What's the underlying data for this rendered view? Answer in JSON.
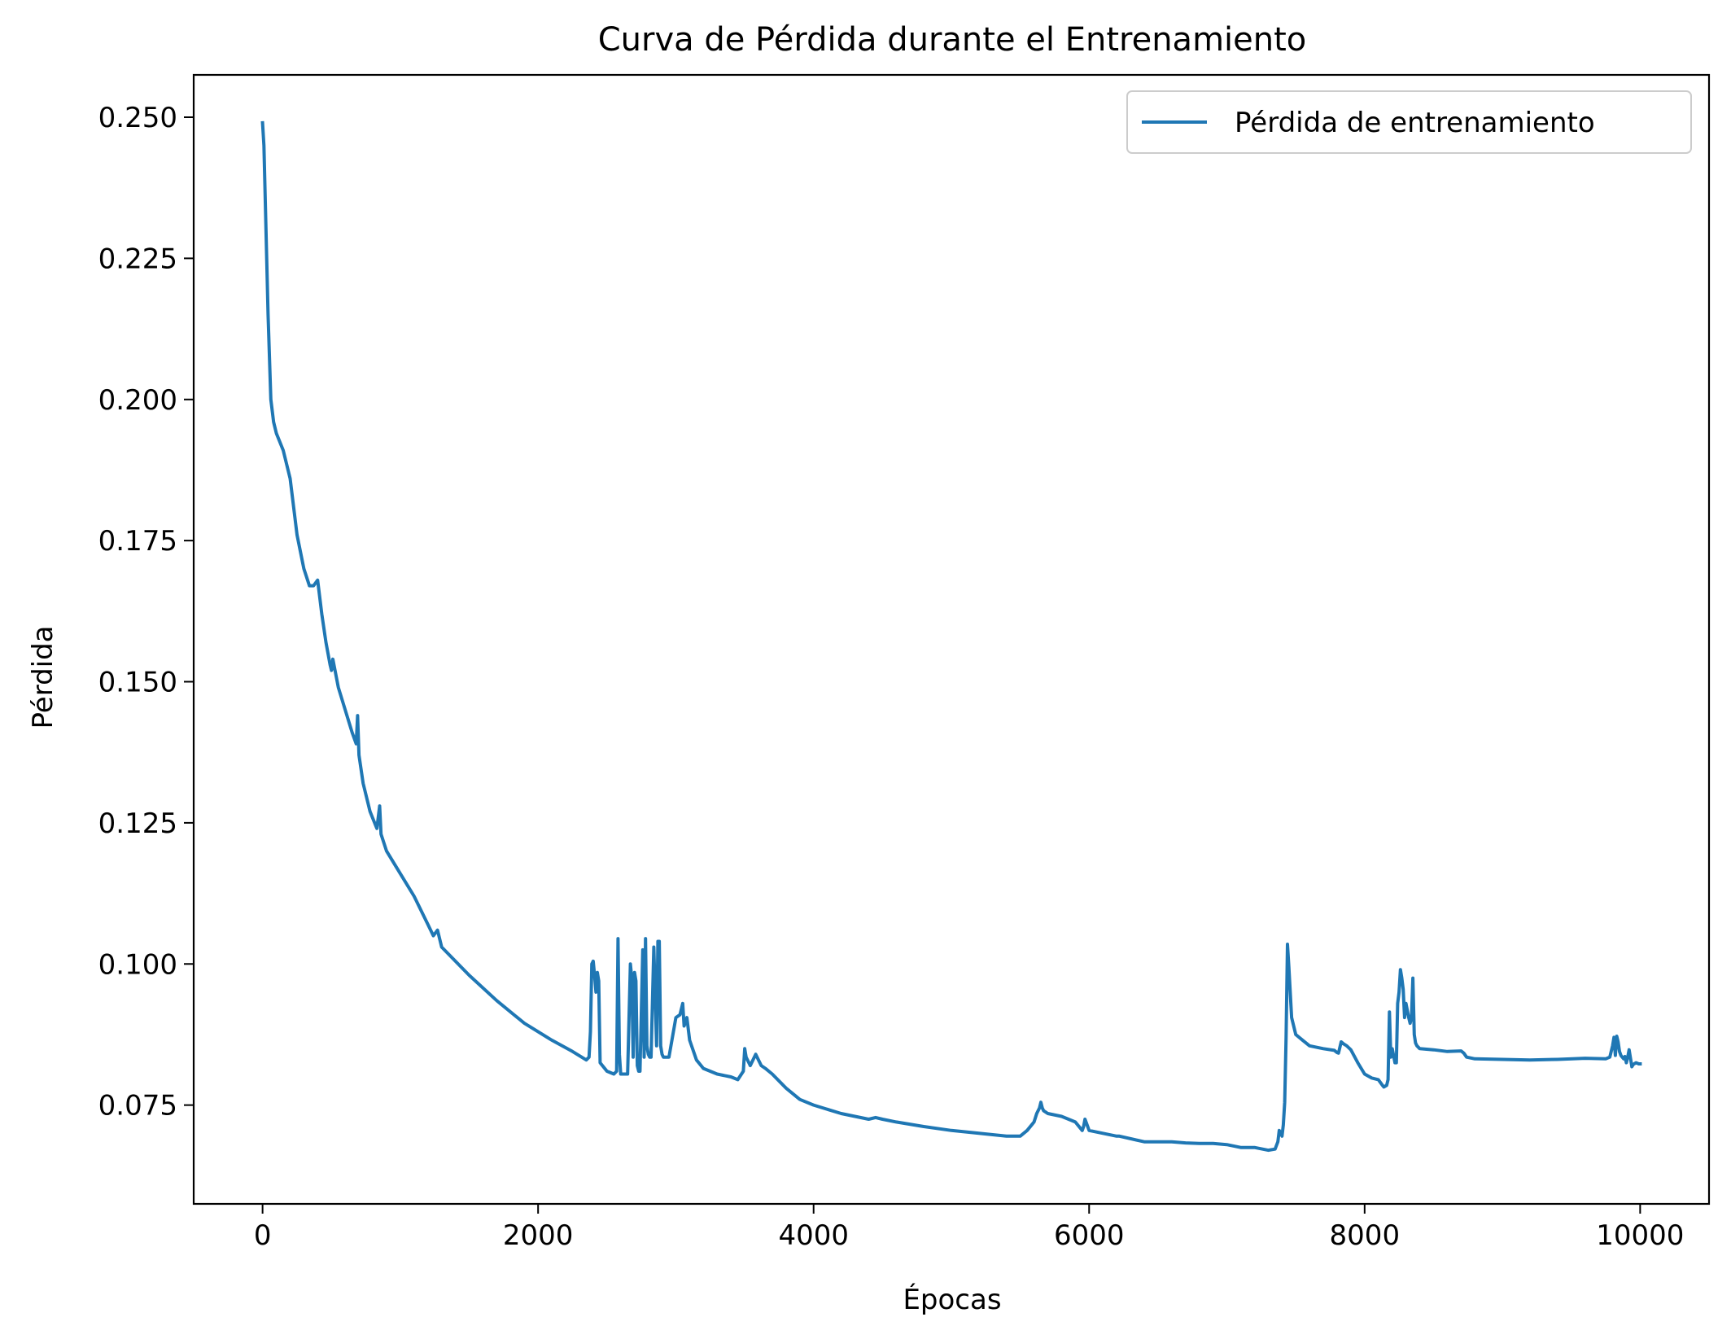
{
  "chart_data": {
    "type": "line",
    "title": "Curva de Pérdida durante el Entrenamiento",
    "xlabel": "Épocas",
    "ylabel": "Pérdida",
    "xlim": [
      -500,
      10500
    ],
    "ylim": [
      0.0575,
      0.2575
    ],
    "xticks": [
      0,
      2000,
      4000,
      6000,
      8000,
      10000
    ],
    "xtick_labels": [
      "0",
      "2000",
      "4000",
      "6000",
      "8000",
      "10000"
    ],
    "yticks": [
      0.075,
      0.1,
      0.125,
      0.15,
      0.175,
      0.2,
      0.225,
      0.25
    ],
    "ytick_labels": [
      "0.075",
      "0.100",
      "0.125",
      "0.150",
      "0.175",
      "0.200",
      "0.225",
      "0.250"
    ],
    "grid": false,
    "legend_position": "top-right",
    "series": [
      {
        "name": "Pérdida de entrenamiento",
        "color": "#1f77b4",
        "x": [
          0,
          10,
          20,
          40,
          60,
          80,
          100,
          150,
          200,
          250,
          300,
          340,
          370,
          400,
          430,
          460,
          490,
          500,
          510,
          550,
          600,
          650,
          680,
          690,
          700,
          730,
          780,
          830,
          850,
          860,
          900,
          1000,
          1100,
          1200,
          1240,
          1270,
          1300,
          1500,
          1700,
          1900,
          2100,
          2250,
          2350,
          2370,
          2380,
          2390,
          2400,
          2410,
          2420,
          2430,
          2440,
          2450,
          2500,
          2550,
          2570,
          2580,
          2590,
          2600,
          2650,
          2670,
          2680,
          2690,
          2700,
          2710,
          2720,
          2730,
          2740,
          2760,
          2770,
          2780,
          2790,
          2800,
          2810,
          2820,
          2840,
          2860,
          2870,
          2880,
          2890,
          2900,
          2910,
          2950,
          3000,
          3030,
          3050,
          3060,
          3080,
          3100,
          3150,
          3200,
          3300,
          3400,
          3450,
          3490,
          3500,
          3510,
          3540,
          3580,
          3600,
          3620,
          3650,
          3700,
          3800,
          3900,
          4000,
          4200,
          4400,
          4450,
          4500,
          4600,
          4800,
          5000,
          5200,
          5400,
          5500,
          5550,
          5600,
          5620,
          5640,
          5650,
          5660,
          5670,
          5700,
          5800,
          5900,
          5950,
          5960,
          5970,
          6000,
          6200,
          6220,
          6400,
          6600,
          6700,
          6800,
          6900,
          7000,
          7100,
          7200,
          7300,
          7350,
          7370,
          7380,
          7400,
          7410,
          7420,
          7430,
          7440,
          7450,
          7470,
          7500,
          7550,
          7600,
          7700,
          7780,
          7790,
          7800,
          7810,
          7830,
          7850,
          7870,
          7900,
          7950,
          8000,
          8050,
          8100,
          8130,
          8140,
          8160,
          8170,
          8180,
          8190,
          8200,
          8220,
          8230,
          8240,
          8250,
          8260,
          8270,
          8280,
          8290,
          8300,
          8320,
          8330,
          8340,
          8350,
          8360,
          8370,
          8380,
          8400,
          8500,
          8600,
          8700,
          8720,
          8740,
          8800,
          9000,
          9200,
          9400,
          9600,
          9750,
          9780,
          9800,
          9810,
          9820,
          9830,
          9840,
          9850,
          9860,
          9870,
          9880,
          9890,
          9900,
          9910,
          9920,
          9940,
          9950,
          9970,
          9990,
          10000
        ],
        "y": [
          0.249,
          0.245,
          0.235,
          0.215,
          0.2,
          0.196,
          0.194,
          0.191,
          0.186,
          0.176,
          0.17,
          0.167,
          0.167,
          0.168,
          0.162,
          0.157,
          0.153,
          0.152,
          0.154,
          0.149,
          0.145,
          0.141,
          0.139,
          0.144,
          0.137,
          0.132,
          0.127,
          0.124,
          0.128,
          0.123,
          0.12,
          0.116,
          0.112,
          0.107,
          0.105,
          0.106,
          0.103,
          0.098,
          0.0935,
          0.0895,
          0.0865,
          0.0845,
          0.083,
          0.0835,
          0.088,
          0.1,
          0.1005,
          0.098,
          0.095,
          0.0985,
          0.097,
          0.0825,
          0.081,
          0.0805,
          0.081,
          0.1045,
          0.084,
          0.0805,
          0.0805,
          0.1,
          0.0975,
          0.0835,
          0.0985,
          0.097,
          0.082,
          0.081,
          0.081,
          0.1025,
          0.0835,
          0.1045,
          0.0855,
          0.084,
          0.0835,
          0.0835,
          0.103,
          0.0855,
          0.104,
          0.104,
          0.0855,
          0.084,
          0.0835,
          0.0835,
          0.0905,
          0.091,
          0.093,
          0.089,
          0.0905,
          0.0865,
          0.083,
          0.0815,
          0.0805,
          0.08,
          0.0795,
          0.081,
          0.085,
          0.0835,
          0.082,
          0.084,
          0.083,
          0.082,
          0.0815,
          0.0805,
          0.078,
          0.076,
          0.075,
          0.0735,
          0.0725,
          0.0728,
          0.0725,
          0.072,
          0.0712,
          0.0705,
          0.07,
          0.0695,
          0.0695,
          0.0705,
          0.072,
          0.0735,
          0.0745,
          0.0755,
          0.0745,
          0.074,
          0.0735,
          0.073,
          0.072,
          0.0705,
          0.0712,
          0.0725,
          0.0705,
          0.0695,
          0.0695,
          0.0685,
          0.0685,
          0.0683,
          0.0682,
          0.0682,
          0.068,
          0.0675,
          0.0675,
          0.067,
          0.0672,
          0.0685,
          0.0705,
          0.0695,
          0.0715,
          0.0755,
          0.087,
          0.1035,
          0.0995,
          0.0905,
          0.0875,
          0.0865,
          0.0855,
          0.085,
          0.0847,
          0.0845,
          0.0843,
          0.0842,
          0.0862,
          0.0858,
          0.0855,
          0.0848,
          0.0825,
          0.0805,
          0.0798,
          0.0795,
          0.0785,
          0.0782,
          0.0785,
          0.0795,
          0.0915,
          0.0835,
          0.085,
          0.0825,
          0.0825,
          0.093,
          0.095,
          0.099,
          0.0975,
          0.0955,
          0.0905,
          0.093,
          0.0905,
          0.0895,
          0.0905,
          0.0975,
          0.0875,
          0.086,
          0.0855,
          0.085,
          0.0848,
          0.0845,
          0.0846,
          0.0842,
          0.0835,
          0.0832,
          0.0831,
          0.083,
          0.0831,
          0.0833,
          0.0832,
          0.0835,
          0.0855,
          0.087,
          0.0838,
          0.0872,
          0.0862,
          0.0845,
          0.0838,
          0.0835,
          0.0832,
          0.0836,
          0.0825,
          0.0835,
          0.0848,
          0.0818,
          0.0822,
          0.0825,
          0.0823,
          0.0823
        ]
      }
    ]
  }
}
